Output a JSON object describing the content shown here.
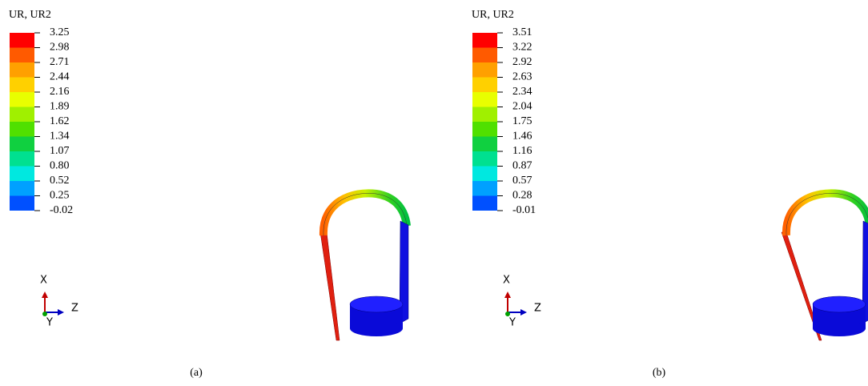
{
  "panels": [
    {
      "legend_title": "UR, UR2",
      "legend_labels": [
        "3.25",
        "2.98",
        "2.71",
        "2.44",
        "2.16",
        "1.89",
        "1.62",
        "1.34",
        "1.07",
        "0.80",
        "0.52",
        "0.25",
        "-0.02"
      ],
      "axes": {
        "x": "X",
        "y": "Y",
        "z": "Z"
      },
      "caption": "(a)"
    },
    {
      "legend_title": "UR, UR2",
      "legend_labels": [
        "3.51",
        "3.22",
        "2.92",
        "2.63",
        "2.34",
        "2.04",
        "1.75",
        "1.46",
        "1.16",
        "0.87",
        "0.57",
        "0.28",
        "-0.01"
      ],
      "axes": {
        "x": "X",
        "y": "Y",
        "z": "Z"
      },
      "caption": "(b)"
    }
  ]
}
